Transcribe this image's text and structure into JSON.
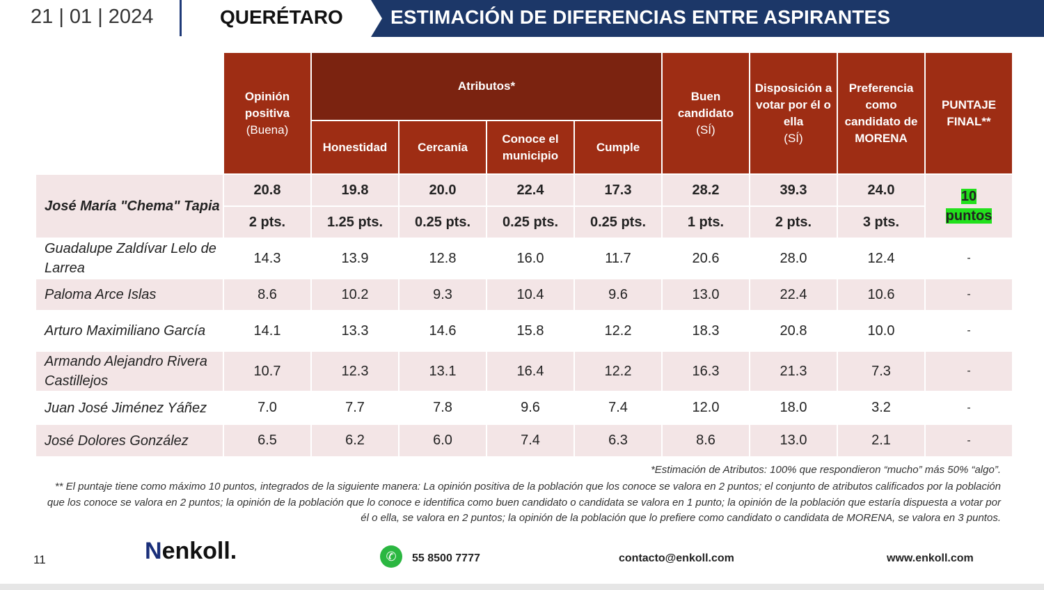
{
  "header": {
    "date": "21 | 01 | 2024",
    "state": "QUERÉTARO",
    "title": "ESTIMACIÓN DE DIFERENCIAS ENTRE ASPIRANTES"
  },
  "table": {
    "headers": {
      "opinion": [
        "Opinión",
        "positiva",
        "(Buena)"
      ],
      "atributos": "Atributos*",
      "honestidad": "Honestidad",
      "cercania": "Cercanía",
      "conoce": "Conoce el municipio",
      "cumple": "Cumple",
      "buen": [
        "Buen",
        "candidato",
        "(SÍ)"
      ],
      "disposicion": [
        "Disposición a",
        "votar por él o",
        "ella",
        "(SÍ)"
      ],
      "preferencia": "Preferencia como candidato de MORENA",
      "puntaje": "PUNTAJE FINAL**"
    },
    "top": {
      "name": "José María \"Chema\" Tapia",
      "values": [
        "20.8",
        "19.8",
        "20.0",
        "22.4",
        "17.3",
        "28.2",
        "39.3",
        "24.0"
      ],
      "points": [
        "2 pts.",
        "1.25 pts.",
        "0.25 pts.",
        "0.25 pts.",
        "0.25 pts.",
        "1 pts.",
        "2 pts.",
        "3 pts."
      ],
      "final": [
        "10",
        "puntos"
      ]
    },
    "rows": [
      {
        "name": "Guadalupe Zaldívar Lelo de Larrea",
        "values": [
          "14.3",
          "13.9",
          "12.8",
          "16.0",
          "11.7",
          "20.6",
          "28.0",
          "12.4"
        ],
        "final": "-"
      },
      {
        "name": "Paloma Arce Islas",
        "values": [
          "8.6",
          "10.2",
          "9.3",
          "10.4",
          "9.6",
          "13.0",
          "22.4",
          "10.6"
        ],
        "final": "-"
      },
      {
        "name": "Arturo Maximiliano García",
        "values": [
          "14.1",
          "13.3",
          "14.6",
          "15.8",
          "12.2",
          "18.3",
          "20.8",
          "10.0"
        ],
        "final": "-"
      },
      {
        "name": "Armando Alejandro Rivera Castillejos",
        "values": [
          "10.7",
          "12.3",
          "13.1",
          "16.4",
          "12.2",
          "16.3",
          "21.3",
          "7.3"
        ],
        "final": "-"
      },
      {
        "name": "Juan José Jiménez Yáñez",
        "values": [
          "7.0",
          "7.7",
          "7.8",
          "9.6",
          "7.4",
          "12.0",
          "18.0",
          "3.2"
        ],
        "final": "-"
      },
      {
        "name": "José Dolores González",
        "values": [
          "6.5",
          "6.2",
          "6.0",
          "7.4",
          "6.3",
          "8.6",
          "13.0",
          "2.1"
        ],
        "final": "-"
      }
    ]
  },
  "notes": {
    "n1": "*Estimación de Atributos: 100% que respondieron “mucho” más 50% “algo”.",
    "n2": "** El puntaje tiene como máximo 10 puntos, integrados de la siguiente manera: La opinión positiva de la población que los conoce se valora en 2 puntos; el conjunto de atributos calificados por la población que los conoce se valora en 2 puntos; la opinión de la población que lo conoce e identifica como buen candidato o candidata se valora en 1 punto; la opinión de la población que estaría dispuesta a votar por él o ella, se valora en 2 puntos; la opinión de la población que lo prefiere como candidato o candidata de MORENA, se valora en 3 puntos."
  },
  "footer": {
    "page": "11",
    "logo": "enkoll.",
    "phone": "55 8500 7777",
    "email": "contacto@enkoll.com",
    "web": "www.enkoll.com"
  }
}
